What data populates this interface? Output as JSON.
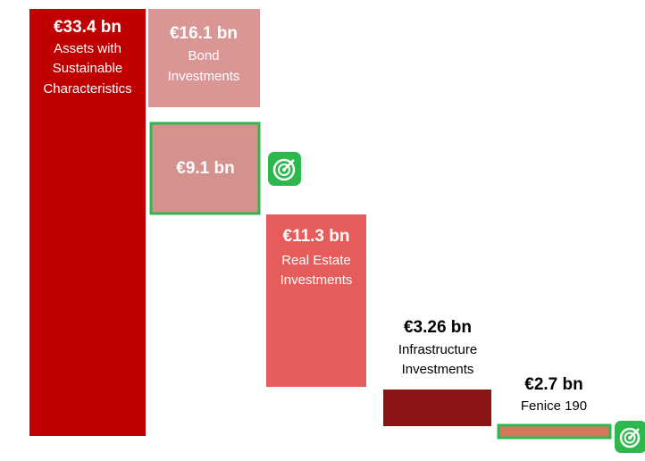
{
  "blocks": [
    {
      "value": "€33.4 bn",
      "lines": [
        "Assets with",
        "Sustainable",
        "Characteristics"
      ]
    },
    {
      "value": "€16.1 bn",
      "lines": [
        "Bond",
        "Investments"
      ]
    },
    {
      "value": "€9.1 bn",
      "lines": []
    },
    {
      "value": "€11.3 bn",
      "lines": [
        "Real Estate",
        "Investments"
      ]
    },
    {
      "value": "€3.26 bn",
      "lines": [
        "Infrastructure",
        "Investments"
      ]
    },
    {
      "value": "€2.7 bn",
      "lines": [
        "Fenice 190"
      ]
    }
  ]
}
